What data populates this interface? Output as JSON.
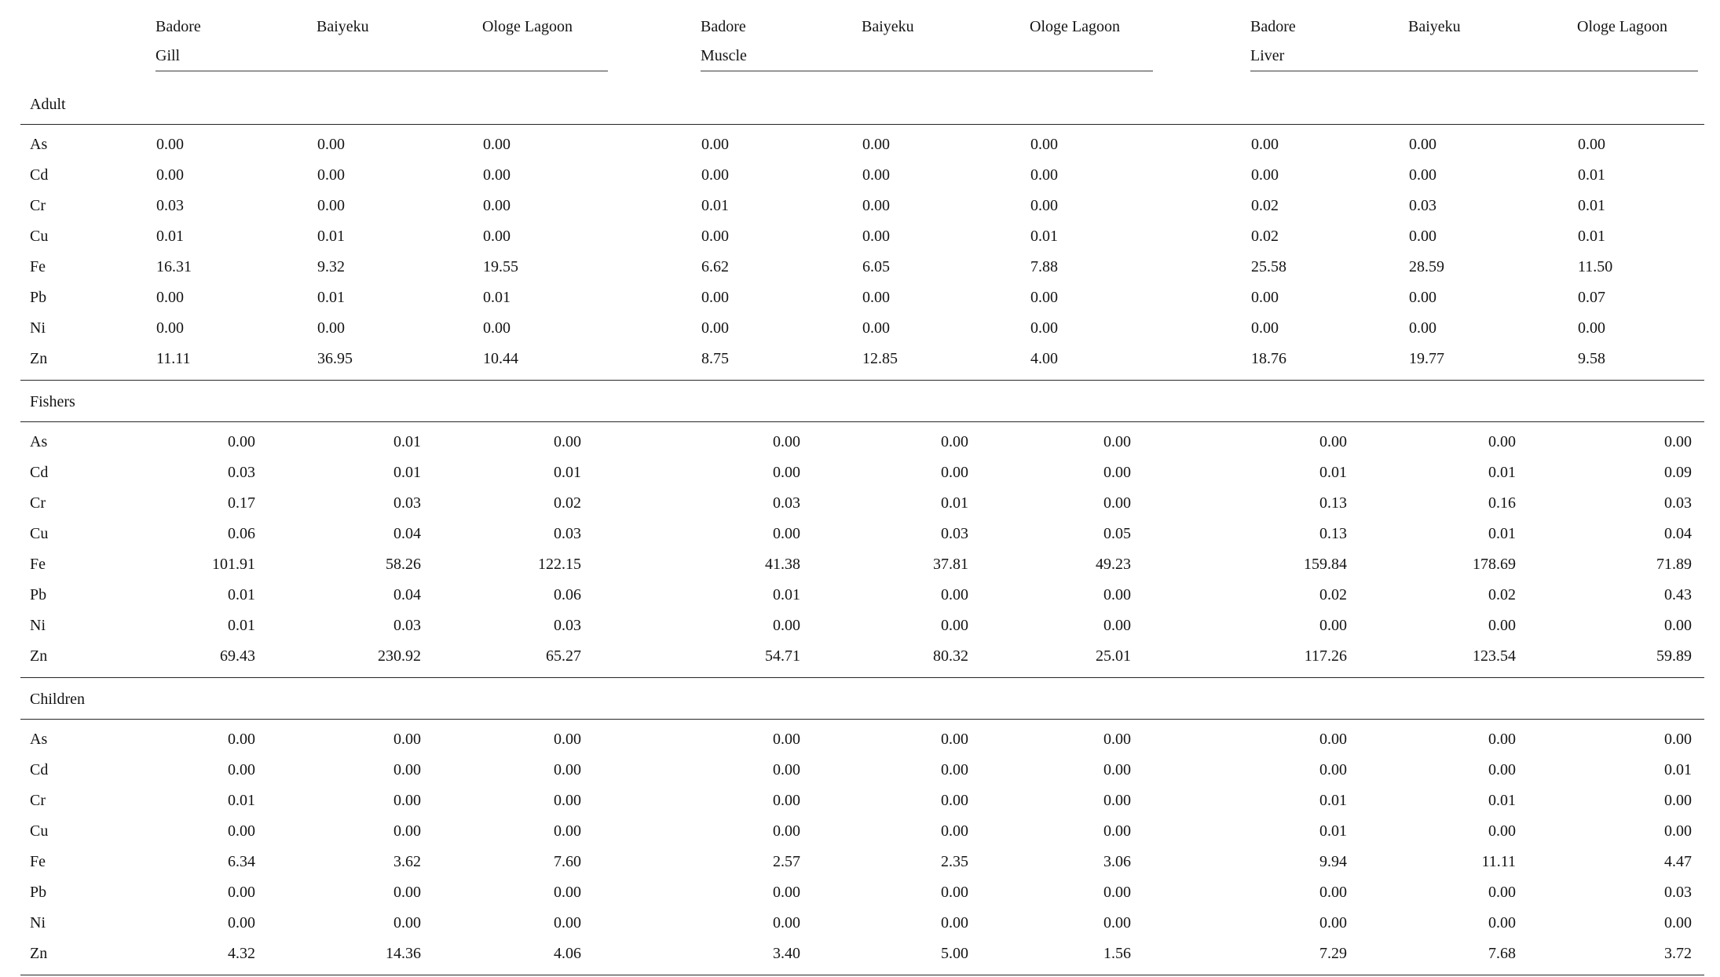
{
  "table": {
    "columns": [
      {
        "line1": "Badore",
        "line2": "Gill"
      },
      {
        "line1": "Baiyeku",
        "line2": ""
      },
      {
        "line1": "Ologe Lagoon",
        "line2": ""
      },
      {
        "line1": "Badore",
        "line2": "Muscle"
      },
      {
        "line1": "Baiyeku",
        "line2": ""
      },
      {
        "line1": "Ologe Lagoon",
        "line2": ""
      },
      {
        "line1": "Badore",
        "line2": "Liver"
      },
      {
        "line1": "Baiyeku",
        "line2": ""
      },
      {
        "line1": "Ologe Lagoon",
        "line2": ""
      }
    ],
    "sections": [
      {
        "title": "Adult",
        "align": "left",
        "rows": [
          {
            "label": "As",
            "values": [
              "0.00",
              "0.00",
              "0.00",
              "0.00",
              "0.00",
              "0.00",
              "0.00",
              "0.00",
              "0.00"
            ]
          },
          {
            "label": "Cd",
            "values": [
              "0.00",
              "0.00",
              "0.00",
              "0.00",
              "0.00",
              "0.00",
              "0.00",
              "0.00",
              "0.01"
            ]
          },
          {
            "label": "Cr",
            "values": [
              "0.03",
              "0.00",
              "0.00",
              "0.01",
              "0.00",
              "0.00",
              "0.02",
              "0.03",
              "0.01"
            ]
          },
          {
            "label": "Cu",
            "values": [
              "0.01",
              "0.01",
              "0.00",
              "0.00",
              "0.00",
              "0.01",
              "0.02",
              "0.00",
              "0.01"
            ]
          },
          {
            "label": "Fe",
            "values": [
              "16.31",
              "9.32",
              "19.55",
              "6.62",
              "6.05",
              "7.88",
              "25.58",
              "28.59",
              "11.50"
            ]
          },
          {
            "label": "Pb",
            "values": [
              "0.00",
              "0.01",
              "0.01",
              "0.00",
              "0.00",
              "0.00",
              "0.00",
              "0.00",
              "0.07"
            ]
          },
          {
            "label": "Ni",
            "values": [
              "0.00",
              "0.00",
              "0.00",
              "0.00",
              "0.00",
              "0.00",
              "0.00",
              "0.00",
              "0.00"
            ]
          },
          {
            "label": "Zn",
            "values": [
              "11.11",
              "36.95",
              "10.44",
              "8.75",
              "12.85",
              "4.00",
              "18.76",
              "19.77",
              "9.58"
            ]
          }
        ]
      },
      {
        "title": "Fishers",
        "align": "right",
        "rows": [
          {
            "label": "As",
            "values": [
              "0.00",
              "0.01",
              "0.00",
              "0.00",
              "0.00",
              "0.00",
              "0.00",
              "0.00",
              "0.00"
            ]
          },
          {
            "label": "Cd",
            "values": [
              "0.03",
              "0.01",
              "0.01",
              "0.00",
              "0.00",
              "0.00",
              "0.01",
              "0.01",
              "0.09"
            ]
          },
          {
            "label": "Cr",
            "values": [
              "0.17",
              "0.03",
              "0.02",
              "0.03",
              "0.01",
              "0.00",
              "0.13",
              "0.16",
              "0.03"
            ]
          },
          {
            "label": "Cu",
            "values": [
              "0.06",
              "0.04",
              "0.03",
              "0.00",
              "0.03",
              "0.05",
              "0.13",
              "0.01",
              "0.04"
            ]
          },
          {
            "label": "Fe",
            "values": [
              "101.91",
              "58.26",
              "122.15",
              "41.38",
              "37.81",
              "49.23",
              "159.84",
              "178.69",
              "71.89"
            ]
          },
          {
            "label": "Pb",
            "values": [
              "0.01",
              "0.04",
              "0.06",
              "0.01",
              "0.00",
              "0.00",
              "0.02",
              "0.02",
              "0.43"
            ]
          },
          {
            "label": "Ni",
            "values": [
              "0.01",
              "0.03",
              "0.03",
              "0.00",
              "0.00",
              "0.00",
              "0.00",
              "0.00",
              "0.00"
            ]
          },
          {
            "label": "Zn",
            "values": [
              "69.43",
              "230.92",
              "65.27",
              "54.71",
              "80.32",
              "25.01",
              "117.26",
              "123.54",
              "59.89"
            ]
          }
        ]
      },
      {
        "title": "Children",
        "align": "right",
        "rows": [
          {
            "label": "As",
            "values": [
              "0.00",
              "0.00",
              "0.00",
              "0.00",
              "0.00",
              "0.00",
              "0.00",
              "0.00",
              "0.00"
            ]
          },
          {
            "label": "Cd",
            "values": [
              "0.00",
              "0.00",
              "0.00",
              "0.00",
              "0.00",
              "0.00",
              "0.00",
              "0.00",
              "0.01"
            ]
          },
          {
            "label": "Cr",
            "values": [
              "0.01",
              "0.00",
              "0.00",
              "0.00",
              "0.00",
              "0.00",
              "0.01",
              "0.01",
              "0.00"
            ]
          },
          {
            "label": "Cu",
            "values": [
              "0.00",
              "0.00",
              "0.00",
              "0.00",
              "0.00",
              "0.00",
              "0.01",
              "0.00",
              "0.00"
            ]
          },
          {
            "label": "Fe",
            "values": [
              "6.34",
              "3.62",
              "7.60",
              "2.57",
              "2.35",
              "3.06",
              "9.94",
              "11.11",
              "4.47"
            ]
          },
          {
            "label": "Pb",
            "values": [
              "0.00",
              "0.00",
              "0.00",
              "0.00",
              "0.00",
              "0.00",
              "0.00",
              "0.00",
              "0.03"
            ]
          },
          {
            "label": "Ni",
            "values": [
              "0.00",
              "0.00",
              "0.00",
              "0.00",
              "0.00",
              "0.00",
              "0.00",
              "0.00",
              "0.00"
            ]
          },
          {
            "label": "Zn",
            "values": [
              "4.32",
              "14.36",
              "4.06",
              "3.40",
              "5.00",
              "1.56",
              "7.29",
              "7.68",
              "3.72"
            ]
          }
        ]
      }
    ]
  }
}
